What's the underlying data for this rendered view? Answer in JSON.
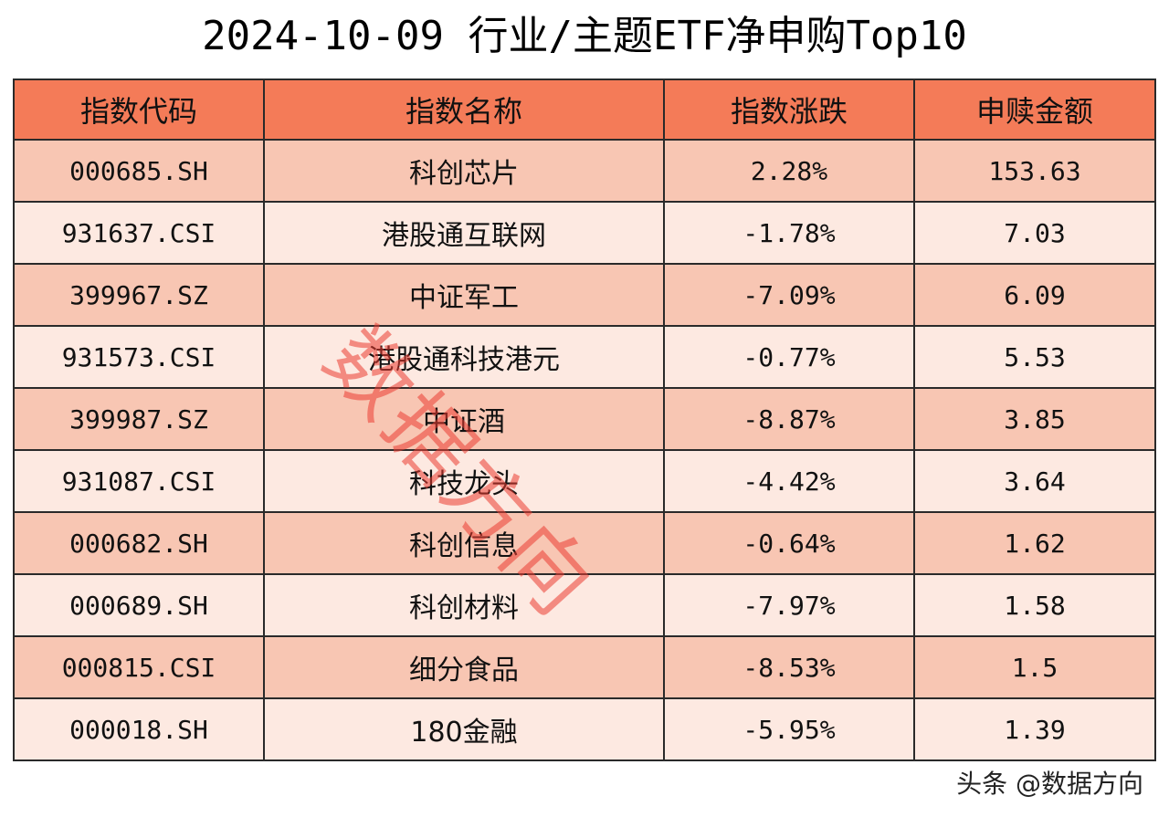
{
  "title": "2024-10-09 行业/主题ETF净申购Top10",
  "table": {
    "headers": [
      "指数代码",
      "指数名称",
      "指数涨跌",
      "申赎金额"
    ],
    "rows": [
      {
        "code": "000685.SH",
        "name": "科创芯片",
        "change": "2.28%",
        "amount": "153.63"
      },
      {
        "code": "931637.CSI",
        "name": "港股通互联网",
        "change": "-1.78%",
        "amount": "7.03"
      },
      {
        "code": "399967.SZ",
        "name": "中证军工",
        "change": "-7.09%",
        "amount": "6.09"
      },
      {
        "code": "931573.CSI",
        "name": "港股通科技港元",
        "change": "-0.77%",
        "amount": "5.53"
      },
      {
        "code": "399987.SZ",
        "name": "中证酒",
        "change": "-8.87%",
        "amount": "3.85"
      },
      {
        "code": "931087.CSI",
        "name": "科技龙头",
        "change": "-4.42%",
        "amount": "3.64"
      },
      {
        "code": "000682.SH",
        "name": "科创信息",
        "change": "-0.64%",
        "amount": "1.62"
      },
      {
        "code": "000689.SH",
        "name": "科创材料",
        "change": "-7.97%",
        "amount": "1.58"
      },
      {
        "code": "000815.CSI",
        "name": "细分食品",
        "change": "-8.53%",
        "amount": "1.5"
      },
      {
        "code": "000018.SH",
        "name": "180金融",
        "change": "-5.95%",
        "amount": "1.39"
      }
    ]
  },
  "watermark": "数据方向",
  "credit": "头条 @数据方向",
  "colors": {
    "header": "#f47b58",
    "row_odd": "#f8c6b3",
    "row_even": "#fde9e1"
  }
}
